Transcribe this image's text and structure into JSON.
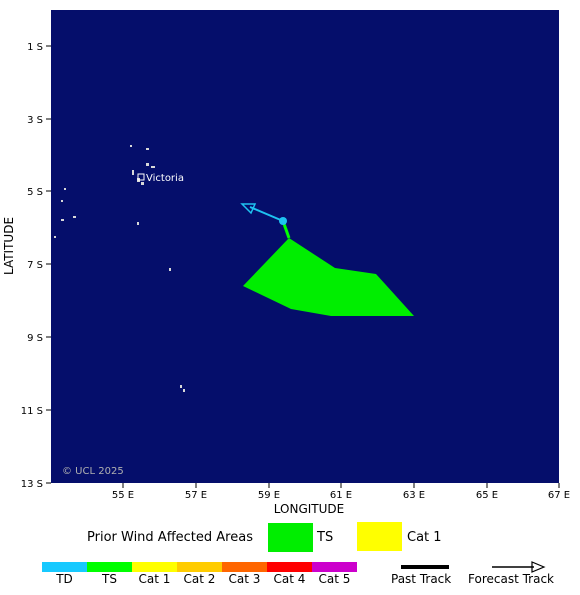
{
  "map": {
    "background_color": "#050e6b",
    "land_color": "#d8d8d8",
    "copyright": "© UCL 2025",
    "place_label": "Victoria",
    "x_axis_title": "LONGITUDE",
    "y_axis_title": "LATITUDE",
    "lon_ticks": [
      "55 E",
      "57 E",
      "59 E",
      "61 E",
      "63 E",
      "65 E",
      "67 E"
    ],
    "lat_ticks": [
      "1 S",
      "3 S",
      "5 S",
      "7 S",
      "9 S",
      "11 S",
      "13 S"
    ],
    "storm_position_label": "",
    "track_color": "#1ec2f0"
  },
  "legend": {
    "prior_wind_title": "Prior Wind Affected Areas",
    "prior_wind": [
      {
        "label": "TS",
        "color": "#00ee00"
      },
      {
        "label": "Cat 1",
        "color": "#ffff00"
      }
    ],
    "scale": [
      {
        "label": "TD",
        "color": "#17c9ff"
      },
      {
        "label": "TS",
        "color": "#00ff00"
      },
      {
        "label": "Cat 1",
        "color": "#ffff00"
      },
      {
        "label": "Cat 2",
        "color": "#ffcc00"
      },
      {
        "label": "Cat 3",
        "color": "#ff6600"
      },
      {
        "label": "Cat 4",
        "color": "#ff0000"
      },
      {
        "label": "Cat 5",
        "color": "#cc00cc"
      }
    ],
    "past_track_label": "Past Track",
    "forecast_track_label": "Forecast Track"
  }
}
